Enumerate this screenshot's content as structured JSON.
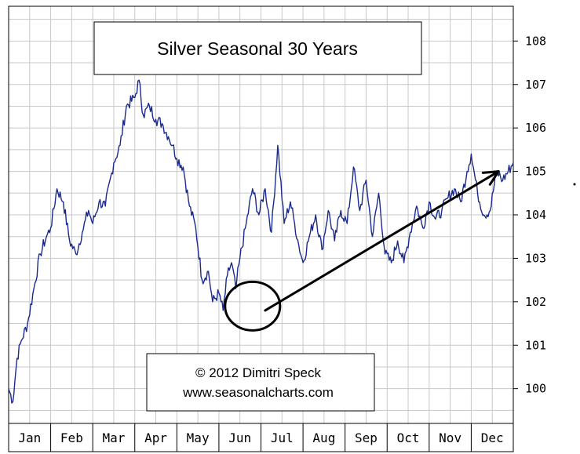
{
  "chart_data": {
    "type": "line",
    "title": "Silver Seasonal 30 Years",
    "credit_line1": "© 2012  Dimitri Speck",
    "credit_line2": "www.seasonalcharts.com",
    "xlabel": "",
    "ylabel": "",
    "ylim": [
      99.2,
      108.8
    ],
    "yticks": [
      100,
      101,
      102,
      103,
      104,
      105,
      106,
      107,
      108
    ],
    "categories": [
      "Jan",
      "Feb",
      "Mar",
      "Apr",
      "May",
      "Jun",
      "Jul",
      "Aug",
      "Sep",
      "Oct",
      "Nov",
      "Dec"
    ],
    "grid": true,
    "series": [
      {
        "x": [
          0.0,
          0.1,
          0.2,
          0.3,
          0.45,
          0.6,
          0.75,
          0.9,
          1.0,
          1.15,
          1.3,
          1.45,
          1.6,
          1.75,
          1.9,
          2.0,
          2.15,
          2.3,
          2.5,
          2.65,
          2.8,
          3.0,
          3.1,
          3.2,
          3.35,
          3.5,
          3.65,
          3.8,
          3.9,
          4.0,
          4.15,
          4.3,
          4.45,
          4.6,
          4.75,
          4.85,
          5.0,
          5.1,
          5.2,
          5.3,
          5.4,
          5.5,
          5.65,
          5.8,
          5.95,
          6.1,
          6.25,
          6.4,
          6.55,
          6.7,
          6.8,
          6.9,
          7.0,
          7.15,
          7.3,
          7.45,
          7.6,
          7.75,
          7.9,
          8.05,
          8.2,
          8.35,
          8.5,
          8.65,
          8.8,
          8.95,
          9.1,
          9.25,
          9.4,
          9.55,
          9.7,
          9.85,
          10.0,
          10.15,
          10.3,
          10.45,
          10.6,
          10.75,
          10.9,
          11.0,
          11.15,
          11.3,
          11.45,
          11.6,
          11.75,
          12.0
        ],
        "values": [
          100.0,
          99.7,
          100.7,
          101.1,
          101.5,
          102.3,
          103.1,
          103.5,
          103.7,
          104.6,
          104.3,
          103.4,
          103.1,
          103.6,
          104.1,
          103.8,
          104.3,
          104.2,
          105.2,
          105.6,
          106.5,
          106.7,
          107.1,
          106.3,
          106.5,
          106.2,
          106.1,
          105.8,
          105.6,
          105.3,
          105.1,
          104.2,
          103.7,
          102.5,
          102.7,
          102.0,
          102.2,
          101.8,
          102.6,
          102.9,
          102.3,
          103.0,
          103.8,
          104.6,
          104.0,
          104.6,
          103.6,
          105.6,
          103.8,
          104.3,
          103.8,
          103.3,
          102.9,
          103.5,
          104.0,
          103.2,
          104.1,
          103.4,
          104.1,
          103.8,
          105.1,
          104.1,
          104.8,
          103.5,
          104.5,
          103.1,
          102.9,
          103.4,
          102.9,
          103.6,
          104.2,
          103.7,
          104.3,
          103.9,
          104.1,
          104.4,
          104.6,
          104.3,
          105.0,
          105.4,
          104.5,
          104.0,
          104.1,
          105.0,
          104.8,
          105.2
        ]
      }
    ],
    "annotations": {
      "circle_center": [
        5.8,
        101.9
      ],
      "arrow_from": [
        6.1,
        101.8
      ],
      "arrow_to": [
        11.65,
        105.0
      ]
    }
  }
}
